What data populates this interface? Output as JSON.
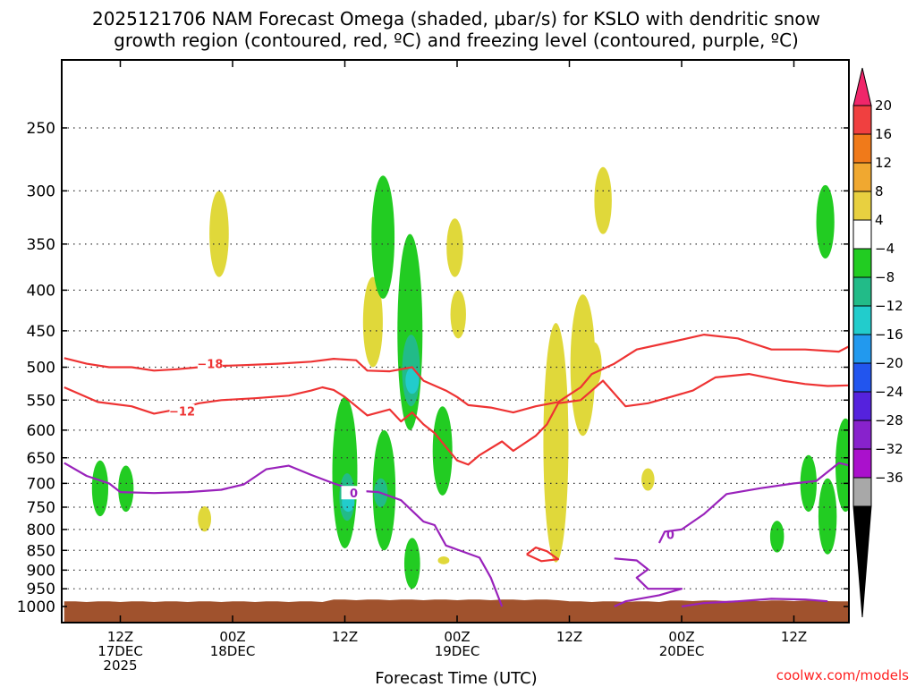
{
  "chart_data": {
    "type": "time-height contour",
    "title_line1": "2025121706 NAM Forecast Omega (shaded, μbar/s) for KSLO with dendritic snow",
    "title_line2": "growth region (contoured, red, ºC) and freezing level (contoured, purple, ºC)",
    "xlabel": "Forecast Time (UTC)",
    "ylabel": "",
    "pressure_ticks": [
      250,
      300,
      350,
      400,
      450,
      500,
      550,
      600,
      650,
      700,
      750,
      800,
      850,
      900,
      950,
      1000
    ],
    "xlim_hours": [
      -5,
      65
    ],
    "x_ticks": [
      {
        "hour": 0,
        "lines": [
          "12Z",
          "17DEC",
          "2025"
        ]
      },
      {
        "hour": 10,
        "lines": [
          "00Z",
          "18DEC"
        ]
      },
      {
        "hour": 20,
        "lines": [
          "12Z"
        ]
      },
      {
        "hour": 30,
        "lines": [
          "00Z",
          "19DEC"
        ]
      },
      {
        "hour": 40,
        "lines": [
          "12Z"
        ]
      },
      {
        "hour": 50,
        "lines": [
          "00Z",
          "20DEC"
        ]
      },
      {
        "hour": 60,
        "lines": [
          "12Z"
        ]
      }
    ],
    "colorbar": {
      "labels": [
        "20",
        "16",
        "12",
        "8",
        "4",
        "−4",
        "−8",
        "−12",
        "−16",
        "−20",
        "−24",
        "−28",
        "−32",
        "−36"
      ],
      "colors": [
        "#f0266a",
        "#f04040",
        "#f07a1a",
        "#f0a830",
        "#e8d040",
        "#ffffff",
        "#22cc22",
        "#22bb88",
        "#22cccc",
        "#2299ee",
        "#2255ee",
        "#5522dd",
        "#8822cc",
        "#aa11cc",
        "#a8a8a8"
      ]
    },
    "contours": [
      {
        "name": "dgz -18",
        "label": "−18",
        "color": "#ee3333",
        "label_hour": 8,
        "label_p": 495,
        "points": [
          [
            -5,
            487
          ],
          [
            -3,
            495
          ],
          [
            -1,
            500
          ],
          [
            1,
            500
          ],
          [
            3,
            505
          ],
          [
            5,
            503
          ],
          [
            7,
            500
          ],
          [
            9,
            498
          ],
          [
            11,
            497
          ],
          [
            14,
            495
          ],
          [
            17,
            492
          ],
          [
            19,
            488
          ],
          [
            21,
            490
          ],
          [
            22,
            505
          ],
          [
            24,
            506
          ],
          [
            26,
            500
          ],
          [
            27,
            520
          ],
          [
            29,
            535
          ],
          [
            30,
            545
          ],
          [
            31,
            558
          ],
          [
            33,
            562
          ],
          [
            35,
            570
          ],
          [
            37,
            560
          ],
          [
            39,
            553
          ],
          [
            41,
            530
          ],
          [
            42,
            510
          ],
          [
            44,
            495
          ],
          [
            46,
            475
          ],
          [
            49,
            465
          ],
          [
            52,
            455
          ],
          [
            55,
            460
          ],
          [
            56,
            465
          ],
          [
            58,
            475
          ],
          [
            61,
            475
          ],
          [
            64,
            478
          ],
          [
            65,
            470
          ]
        ]
      },
      {
        "name": "dgz -12",
        "label": "−12",
        "color": "#ee3333",
        "label_hour": 5.5,
        "label_p": 568,
        "points": [
          [
            -5,
            530
          ],
          [
            -2,
            553
          ],
          [
            1,
            560
          ],
          [
            3,
            572
          ],
          [
            5,
            565
          ],
          [
            7,
            555
          ],
          [
            9,
            550
          ],
          [
            12,
            547
          ],
          [
            15,
            543
          ],
          [
            17,
            535
          ],
          [
            18,
            530
          ],
          [
            19,
            534
          ],
          [
            20,
            545
          ],
          [
            22,
            575
          ],
          [
            24,
            565
          ],
          [
            25,
            585
          ],
          [
            26,
            570
          ],
          [
            27,
            590
          ],
          [
            28,
            605
          ],
          [
            29,
            630
          ],
          [
            30,
            655
          ],
          [
            31,
            663
          ],
          [
            32,
            645
          ],
          [
            34,
            620
          ],
          [
            35,
            637
          ],
          [
            37,
            610
          ],
          [
            38,
            590
          ],
          [
            39,
            555
          ],
          [
            41,
            550
          ],
          [
            42,
            535
          ],
          [
            43,
            520
          ],
          [
            45,
            560
          ],
          [
            47,
            555
          ],
          [
            49,
            545
          ],
          [
            51,
            535
          ],
          [
            53,
            515
          ],
          [
            56,
            510
          ],
          [
            59,
            520
          ],
          [
            61,
            525
          ],
          [
            63,
            528
          ],
          [
            65,
            527
          ]
        ]
      },
      {
        "name": "dgz -12 isolated",
        "label": "",
        "color": "#ee3333",
        "label_hour": null,
        "label_p": null,
        "points": [
          [
            36.2,
            860
          ],
          [
            37,
            843
          ],
          [
            38,
            852
          ],
          [
            39,
            872
          ],
          [
            37.5,
            877
          ],
          [
            36.2,
            860
          ]
        ]
      },
      {
        "name": "freezing level 0",
        "label": "0",
        "color": "#9922bb",
        "label_hour": 20.8,
        "label_p": 720,
        "points": [
          [
            -5,
            660
          ],
          [
            -3,
            685
          ],
          [
            -1,
            700
          ],
          [
            0,
            718
          ],
          [
            3,
            720
          ],
          [
            6,
            718
          ],
          [
            9,
            713
          ],
          [
            11,
            702
          ],
          [
            13,
            672
          ],
          [
            15,
            665
          ],
          [
            17,
            683
          ],
          [
            19,
            700
          ],
          [
            21,
            715
          ],
          [
            23,
            718
          ],
          [
            25,
            735
          ],
          [
            27,
            782
          ],
          [
            28,
            790
          ],
          [
            29,
            838
          ],
          [
            32,
            868
          ],
          [
            33,
            920
          ],
          [
            34,
            1000
          ]
        ]
      },
      {
        "name": "freezing level 0 east",
        "label": "0",
        "color": "#9922bb",
        "label_hour": 49,
        "label_p": 812,
        "points": [
          [
            44,
            870
          ],
          [
            46,
            875
          ],
          [
            47,
            898
          ],
          [
            46,
            920
          ],
          [
            47,
            950
          ],
          [
            50,
            950
          ],
          [
            48,
            968
          ],
          [
            45,
            985
          ],
          [
            44,
            1000
          ]
        ]
      },
      {
        "name": "freezing level 0 east upper",
        "label": "",
        "color": "#9922bb",
        "label_hour": null,
        "label_p": null,
        "points": [
          [
            48,
            832
          ],
          [
            48.5,
            805
          ],
          [
            50,
            800
          ],
          [
            52,
            765
          ],
          [
            54,
            722
          ],
          [
            57,
            710
          ],
          [
            60,
            700
          ],
          [
            62,
            695
          ],
          [
            64,
            660
          ],
          [
            65,
            665
          ]
        ]
      },
      {
        "name": "freezing level 0 east surface",
        "label": "",
        "color": "#9922bb",
        "label_hour": null,
        "label_p": null,
        "points": [
          [
            50,
            1000
          ],
          [
            52,
            990
          ],
          [
            55,
            985
          ],
          [
            58,
            978
          ],
          [
            61,
            980
          ],
          [
            63,
            985
          ]
        ]
      }
    ],
    "shaded_regions": [
      {
        "color": "#e0d83a",
        "hour": 8.8,
        "p_top": 300,
        "p_bottom": 385
      },
      {
        "color": "#e0d83a",
        "hour": 7.5,
        "p_top": 748,
        "p_bottom": 805
      },
      {
        "color": "#e0d83a",
        "hour": 22.5,
        "p_top": 385,
        "p_bottom": 500
      },
      {
        "color": "#e0d83a",
        "hour": 29.8,
        "p_top": 325,
        "p_bottom": 385
      },
      {
        "color": "#e0d83a",
        "hour": 30.1,
        "p_top": 400,
        "p_bottom": 460
      },
      {
        "color": "#e0d83a",
        "hour": 38.8,
        "p_top": 440,
        "p_bottom": 880
      },
      {
        "color": "#e0d83a",
        "hour": 41.2,
        "p_top": 405,
        "p_bottom": 610
      },
      {
        "color": "#e0d83a",
        "hour": 42.2,
        "p_top": 465,
        "p_bottom": 530
      },
      {
        "color": "#e0d83a",
        "hour": 43,
        "p_top": 280,
        "p_bottom": 340
      },
      {
        "color": "#e0d83a",
        "hour": 47,
        "p_top": 670,
        "p_bottom": 715
      },
      {
        "color": "#e0d83a",
        "hour": 28.8,
        "p_top": 865,
        "p_bottom": 885
      },
      {
        "color": "#22cc22",
        "hour": -1.8,
        "p_top": 655,
        "p_bottom": 770
      },
      {
        "color": "#22cc22",
        "hour": 0.5,
        "p_top": 665,
        "p_bottom": 760
      },
      {
        "color": "#22cc22",
        "hour": 23.4,
        "p_top": 287,
        "p_bottom": 410
      },
      {
        "color": "#22cc22",
        "hour": 25.8,
        "p_top": 340,
        "p_bottom": 600
      },
      {
        "color": "#22cc22",
        "hour": 20,
        "p_top": 545,
        "p_bottom": 845
      },
      {
        "color": "#22cc22",
        "hour": 23.5,
        "p_top": 600,
        "p_bottom": 850
      },
      {
        "color": "#22cc22",
        "hour": 26,
        "p_top": 820,
        "p_bottom": 950
      },
      {
        "color": "#22cc22",
        "hour": 28.7,
        "p_top": 560,
        "p_bottom": 725
      },
      {
        "color": "#22cc22",
        "hour": 63,
        "p_top": 690,
        "p_bottom": 860
      },
      {
        "color": "#22cc22",
        "hour": 58.5,
        "p_top": 780,
        "p_bottom": 855
      },
      {
        "color": "#22cc22",
        "hour": 61.3,
        "p_top": 645,
        "p_bottom": 760
      },
      {
        "color": "#22cc22",
        "hour": 64.6,
        "p_top": 580,
        "p_bottom": 760
      },
      {
        "color": "#22cc22",
        "hour": 62.8,
        "p_top": 295,
        "p_bottom": 365
      },
      {
        "color": "#22bb88",
        "hour": 25.9,
        "p_top": 455,
        "p_bottom": 560
      },
      {
        "color": "#22bb88",
        "hour": 20.2,
        "p_top": 680,
        "p_bottom": 780
      },
      {
        "color": "#22bb88",
        "hour": 23.2,
        "p_top": 690,
        "p_bottom": 750
      },
      {
        "color": "#22cccc",
        "hour": 26,
        "p_top": 500,
        "p_bottom": 540
      },
      {
        "color": "#22cccc",
        "hour": 20.3,
        "p_top": 720,
        "p_bottom": 760
      }
    ],
    "ground": {
      "label": "terrain",
      "color": "#a0522d",
      "p_top": 985
    }
  },
  "credit": "coolwx.com/models"
}
